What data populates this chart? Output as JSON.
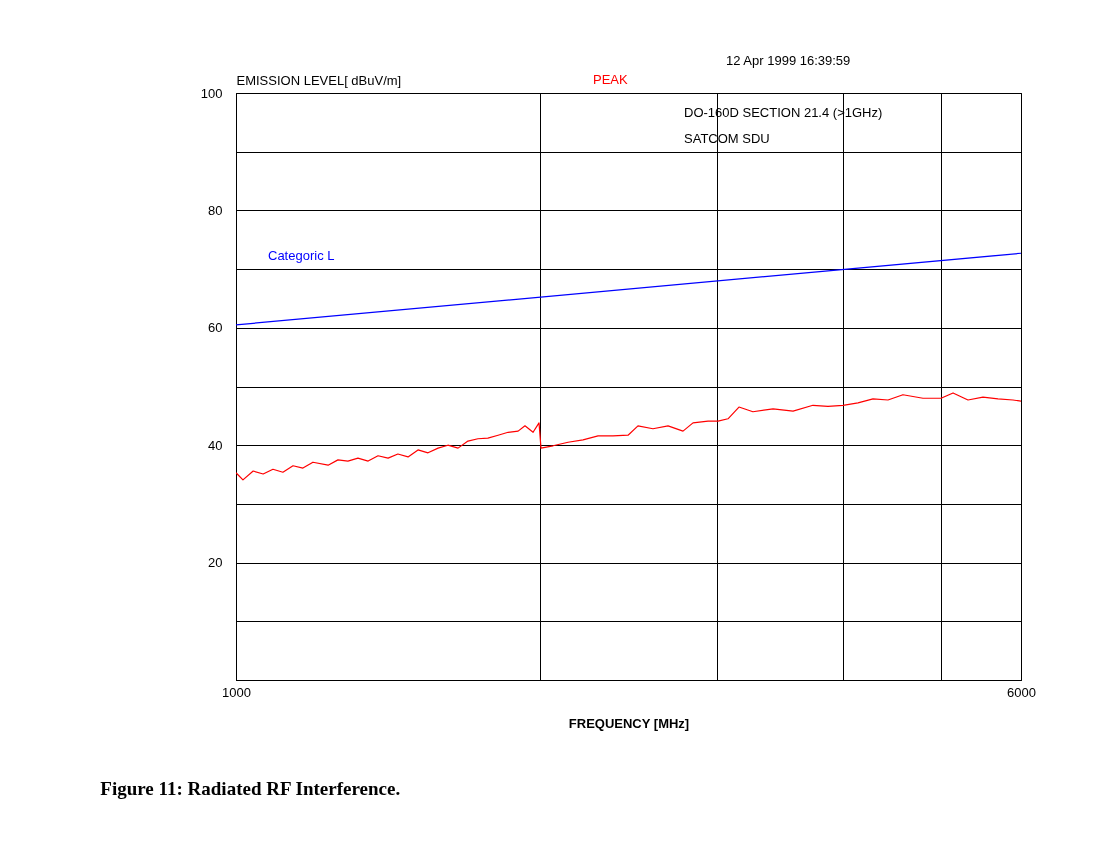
{
  "chart_data": {
    "type": "line",
    "title": "Figure 11: Radiated RF Interference.",
    "xlabel": "FREQUENCY [MHz]",
    "ylabel": "EMISSION LEVEL[ dBuV/m]",
    "annotations": [
      "12 Apr 1999  16:39:59",
      "DO-160D SECTION 21.4 (>1GHz)",
      "SATCOM SDU"
    ],
    "log": "x",
    "xlim": [
      1000,
      6000
    ],
    "xticks": [
      1000,
      {
        "value": 2000,
        "label": null
      },
      {
        "value": 3000,
        "label": null
      },
      {
        "value": 4000,
        "label": null
      },
      {
        "value": 5000,
        "label": null
      },
      6000
    ],
    "ylim": [
      0,
      100
    ],
    "yticks": [
      {
        "value": 0,
        "label": null
      },
      {
        "value": 10,
        "label": null
      },
      20,
      {
        "value": 30,
        "label": null
      },
      40,
      {
        "value": 50,
        "label": null
      },
      60,
      {
        "value": 70,
        "label": null
      },
      80,
      {
        "value": 90,
        "label": null
      },
      100
    ],
    "grid": true,
    "line_style": "solid",
    "series": [
      {
        "name": "PEAK",
        "color": "#ff0000",
        "x": [
          1000,
          1016,
          1040,
          1064,
          1088,
          1113,
          1139,
          1165,
          1192,
          1234,
          1262,
          1291,
          1321,
          1352,
          1383,
          1415,
          1447,
          1481,
          1515,
          1550,
          1586,
          1622,
          1660,
          1698,
          1737,
          1777,
          1819,
          1861,
          1904,
          1934,
          1970,
          1997,
          2006,
          2062,
          2134,
          2208,
          2285,
          2364,
          2447,
          2503,
          2590,
          2681,
          2774,
          2838,
          2937,
          3005,
          3074,
          3152,
          3254,
          3407,
          3566,
          3732,
          3862,
          3997,
          4136,
          4280,
          4429,
          4583,
          4797,
          4999,
          5138,
          5316,
          5501,
          5693,
          5891,
          6000
        ],
        "values": [
          35.3,
          34.1,
          35.6,
          35.1,
          35.9,
          35.4,
          36.5,
          36.1,
          37.1,
          36.6,
          37.5,
          37.3,
          37.8,
          37.3,
          38.2,
          37.8,
          38.5,
          38.0,
          39.2,
          38.7,
          39.5,
          40.0,
          39.5,
          40.7,
          41.1,
          41.2,
          41.7,
          42.2,
          42.4,
          43.3,
          42.2,
          43.8,
          39.5,
          39.9,
          40.5,
          40.9,
          41.6,
          41.6,
          41.7,
          43.3,
          42.8,
          43.3,
          42.4,
          43.8,
          44.1,
          44.1,
          44.5,
          46.5,
          45.7,
          46.2,
          45.8,
          46.8,
          46.6,
          46.8,
          47.2,
          47.9,
          47.7,
          48.6,
          48.0,
          48.0,
          48.9,
          47.7,
          48.2,
          47.9,
          47.7,
          47.5
        ]
      },
      {
        "name": "Categoric L",
        "color": "#0000ff",
        "x": [
          1000,
          6000
        ],
        "values": [
          60.5,
          72.7
        ]
      }
    ]
  }
}
